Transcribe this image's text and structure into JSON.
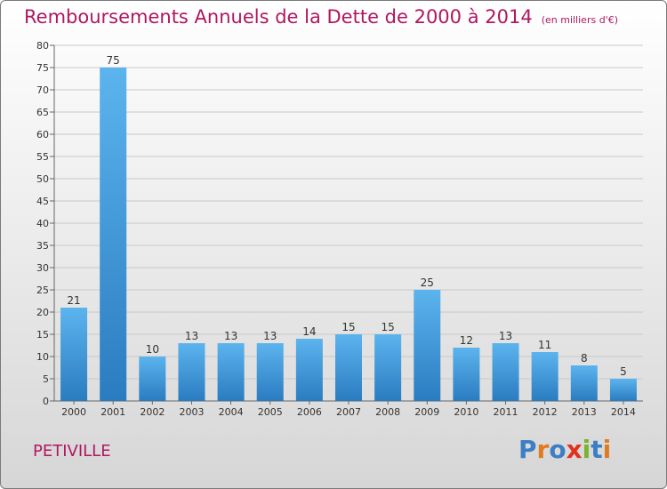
{
  "chart_data": {
    "type": "bar",
    "title": "Remboursements Annuels de la Dette de 2000 à 2014",
    "subtitle": "(en milliers d'€)",
    "categories": [
      "2000",
      "2001",
      "2002",
      "2003",
      "2004",
      "2005",
      "2006",
      "2007",
      "2008",
      "2009",
      "2010",
      "2011",
      "2012",
      "2013",
      "2014"
    ],
    "values": [
      21,
      75,
      10,
      13,
      13,
      13,
      14,
      15,
      15,
      25,
      12,
      13,
      11,
      8,
      5
    ],
    "ylim": [
      0,
      80
    ],
    "yticks": [
      0,
      5,
      10,
      15,
      20,
      25,
      30,
      35,
      40,
      45,
      50,
      55,
      60,
      65,
      70,
      75,
      80
    ],
    "grid": true,
    "bar_color": "#3d9ae0"
  },
  "place": "PETIVILLE",
  "logo": {
    "letters": [
      "P",
      "r",
      "o",
      "x",
      "i",
      "t",
      "i"
    ],
    "colors": [
      "#3d7fc4",
      "#e07b1f",
      "#3d7fc4",
      "#e0331f",
      "#7ab32e",
      "#3d7fc4",
      "#e07b1f"
    ]
  }
}
